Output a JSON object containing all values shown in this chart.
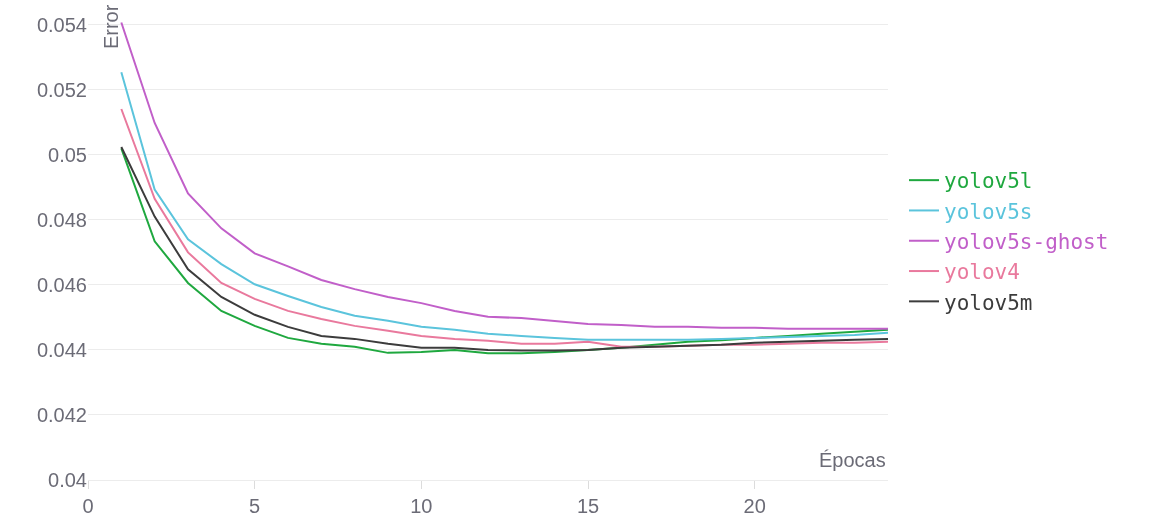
{
  "chart_data": {
    "type": "line",
    "xlabel": "Épocas",
    "ylabel": "Error",
    "x": [
      1,
      2,
      3,
      4,
      5,
      6,
      7,
      8,
      9,
      10,
      11,
      12,
      13,
      14,
      15,
      16,
      17,
      18,
      19,
      20,
      21,
      22,
      23,
      24
    ],
    "series": [
      {
        "name": "yolov5l",
        "color": "#1fa83f",
        "values": [
          0.0502,
          0.04734,
          0.04606,
          0.0452,
          0.04474,
          0.04437,
          0.04419,
          0.0441,
          0.04391,
          0.04394,
          0.044,
          0.0439,
          0.0439,
          0.04394,
          0.044,
          0.04407,
          0.04416,
          0.04425,
          0.0443,
          0.04437,
          0.04443,
          0.0445,
          0.04456,
          0.04462
        ]
      },
      {
        "name": "yolov5s",
        "color": "#5bc4dc",
        "values": [
          0.05254,
          0.04893,
          0.0474,
          0.04664,
          0.04602,
          0.04566,
          0.04532,
          0.04505,
          0.0449,
          0.04471,
          0.04462,
          0.0445,
          0.04443,
          0.04437,
          0.04431,
          0.04431,
          0.04431,
          0.04431,
          0.04434,
          0.04437,
          0.0444,
          0.04443,
          0.04446,
          0.04453
        ]
      },
      {
        "name": "yolov5s-ghost",
        "color": "#c15fc9",
        "values": [
          0.05407,
          0.05098,
          0.04881,
          0.04774,
          0.04697,
          0.04657,
          0.04615,
          0.04587,
          0.04563,
          0.04544,
          0.0452,
          0.04502,
          0.04498,
          0.04489,
          0.0448,
          0.04477,
          0.04471,
          0.04471,
          0.04468,
          0.04468,
          0.04465,
          0.04465,
          0.04465,
          0.04465
        ]
      },
      {
        "name": "yolov4",
        "color": "#e9799d",
        "values": [
          0.05141,
          0.04865,
          0.047,
          0.04606,
          0.04557,
          0.0452,
          0.04495,
          0.04474,
          0.04459,
          0.04443,
          0.04434,
          0.04428,
          0.04419,
          0.04419,
          0.04425,
          0.0441,
          0.0441,
          0.04413,
          0.04416,
          0.04416,
          0.04419,
          0.04422,
          0.04422,
          0.04425
        ]
      },
      {
        "name": "yolov5m",
        "color": "#3c3c3c",
        "values": [
          0.05024,
          0.0481,
          0.04648,
          0.04563,
          0.04508,
          0.04471,
          0.04443,
          0.04434,
          0.04419,
          0.04407,
          0.04407,
          0.044,
          0.04398,
          0.04398,
          0.044,
          0.04407,
          0.0441,
          0.04413,
          0.04416,
          0.04422,
          0.04425,
          0.04428,
          0.04431,
          0.04434
        ]
      }
    ],
    "xlim": [
      0,
      24
    ],
    "xticks": [
      0,
      5,
      10,
      15,
      20
    ],
    "ylim": [
      0.04,
      0.0547
    ],
    "yticks": [
      0.04,
      0.042,
      0.044,
      0.046,
      0.048,
      0.05,
      0.052,
      0.054
    ],
    "grid": "y",
    "legend": "right",
    "line_style": "solid",
    "marker": "none"
  }
}
